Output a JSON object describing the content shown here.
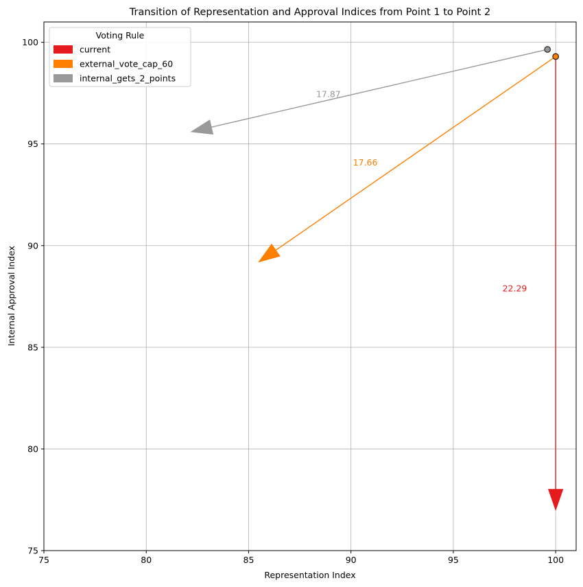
{
  "chart_data": {
    "type": "arrow-scatter",
    "title": "Transition of Representation and Approval Indices from Point 1 to Point 2",
    "xlabel": "Representation Index",
    "ylabel": "Internal Approval Index",
    "xlim": [
      75,
      101
    ],
    "ylim": [
      75,
      101
    ],
    "xticks": [
      75,
      80,
      85,
      90,
      95,
      100
    ],
    "yticks": [
      75,
      80,
      85,
      90,
      95,
      100
    ],
    "grid": true,
    "legend": {
      "title": "Voting Rule",
      "placement": "top-left"
    },
    "series": [
      {
        "name": "current",
        "color": "#e41a1c",
        "start": {
          "x": 100.0,
          "y": 99.3
        },
        "end": {
          "x": 100.0,
          "y": 77.0
        },
        "label": "22.29",
        "label_pos": {
          "x": 98.0,
          "y": 87.9
        }
      },
      {
        "name": "external_vote_cap_60",
        "color": "#ff7f00",
        "start": {
          "x": 100.0,
          "y": 99.3
        },
        "end": {
          "x": 85.5,
          "y": 89.2
        },
        "label": "17.66",
        "label_pos": {
          "x": 90.7,
          "y": 94.1
        }
      },
      {
        "name": "internal_gets_2_points",
        "color": "#999999",
        "start": {
          "x": 99.6,
          "y": 99.65
        },
        "end": {
          "x": 82.2,
          "y": 95.6
        },
        "label": "17.87",
        "label_pos": {
          "x": 88.9,
          "y": 97.45
        }
      }
    ]
  }
}
